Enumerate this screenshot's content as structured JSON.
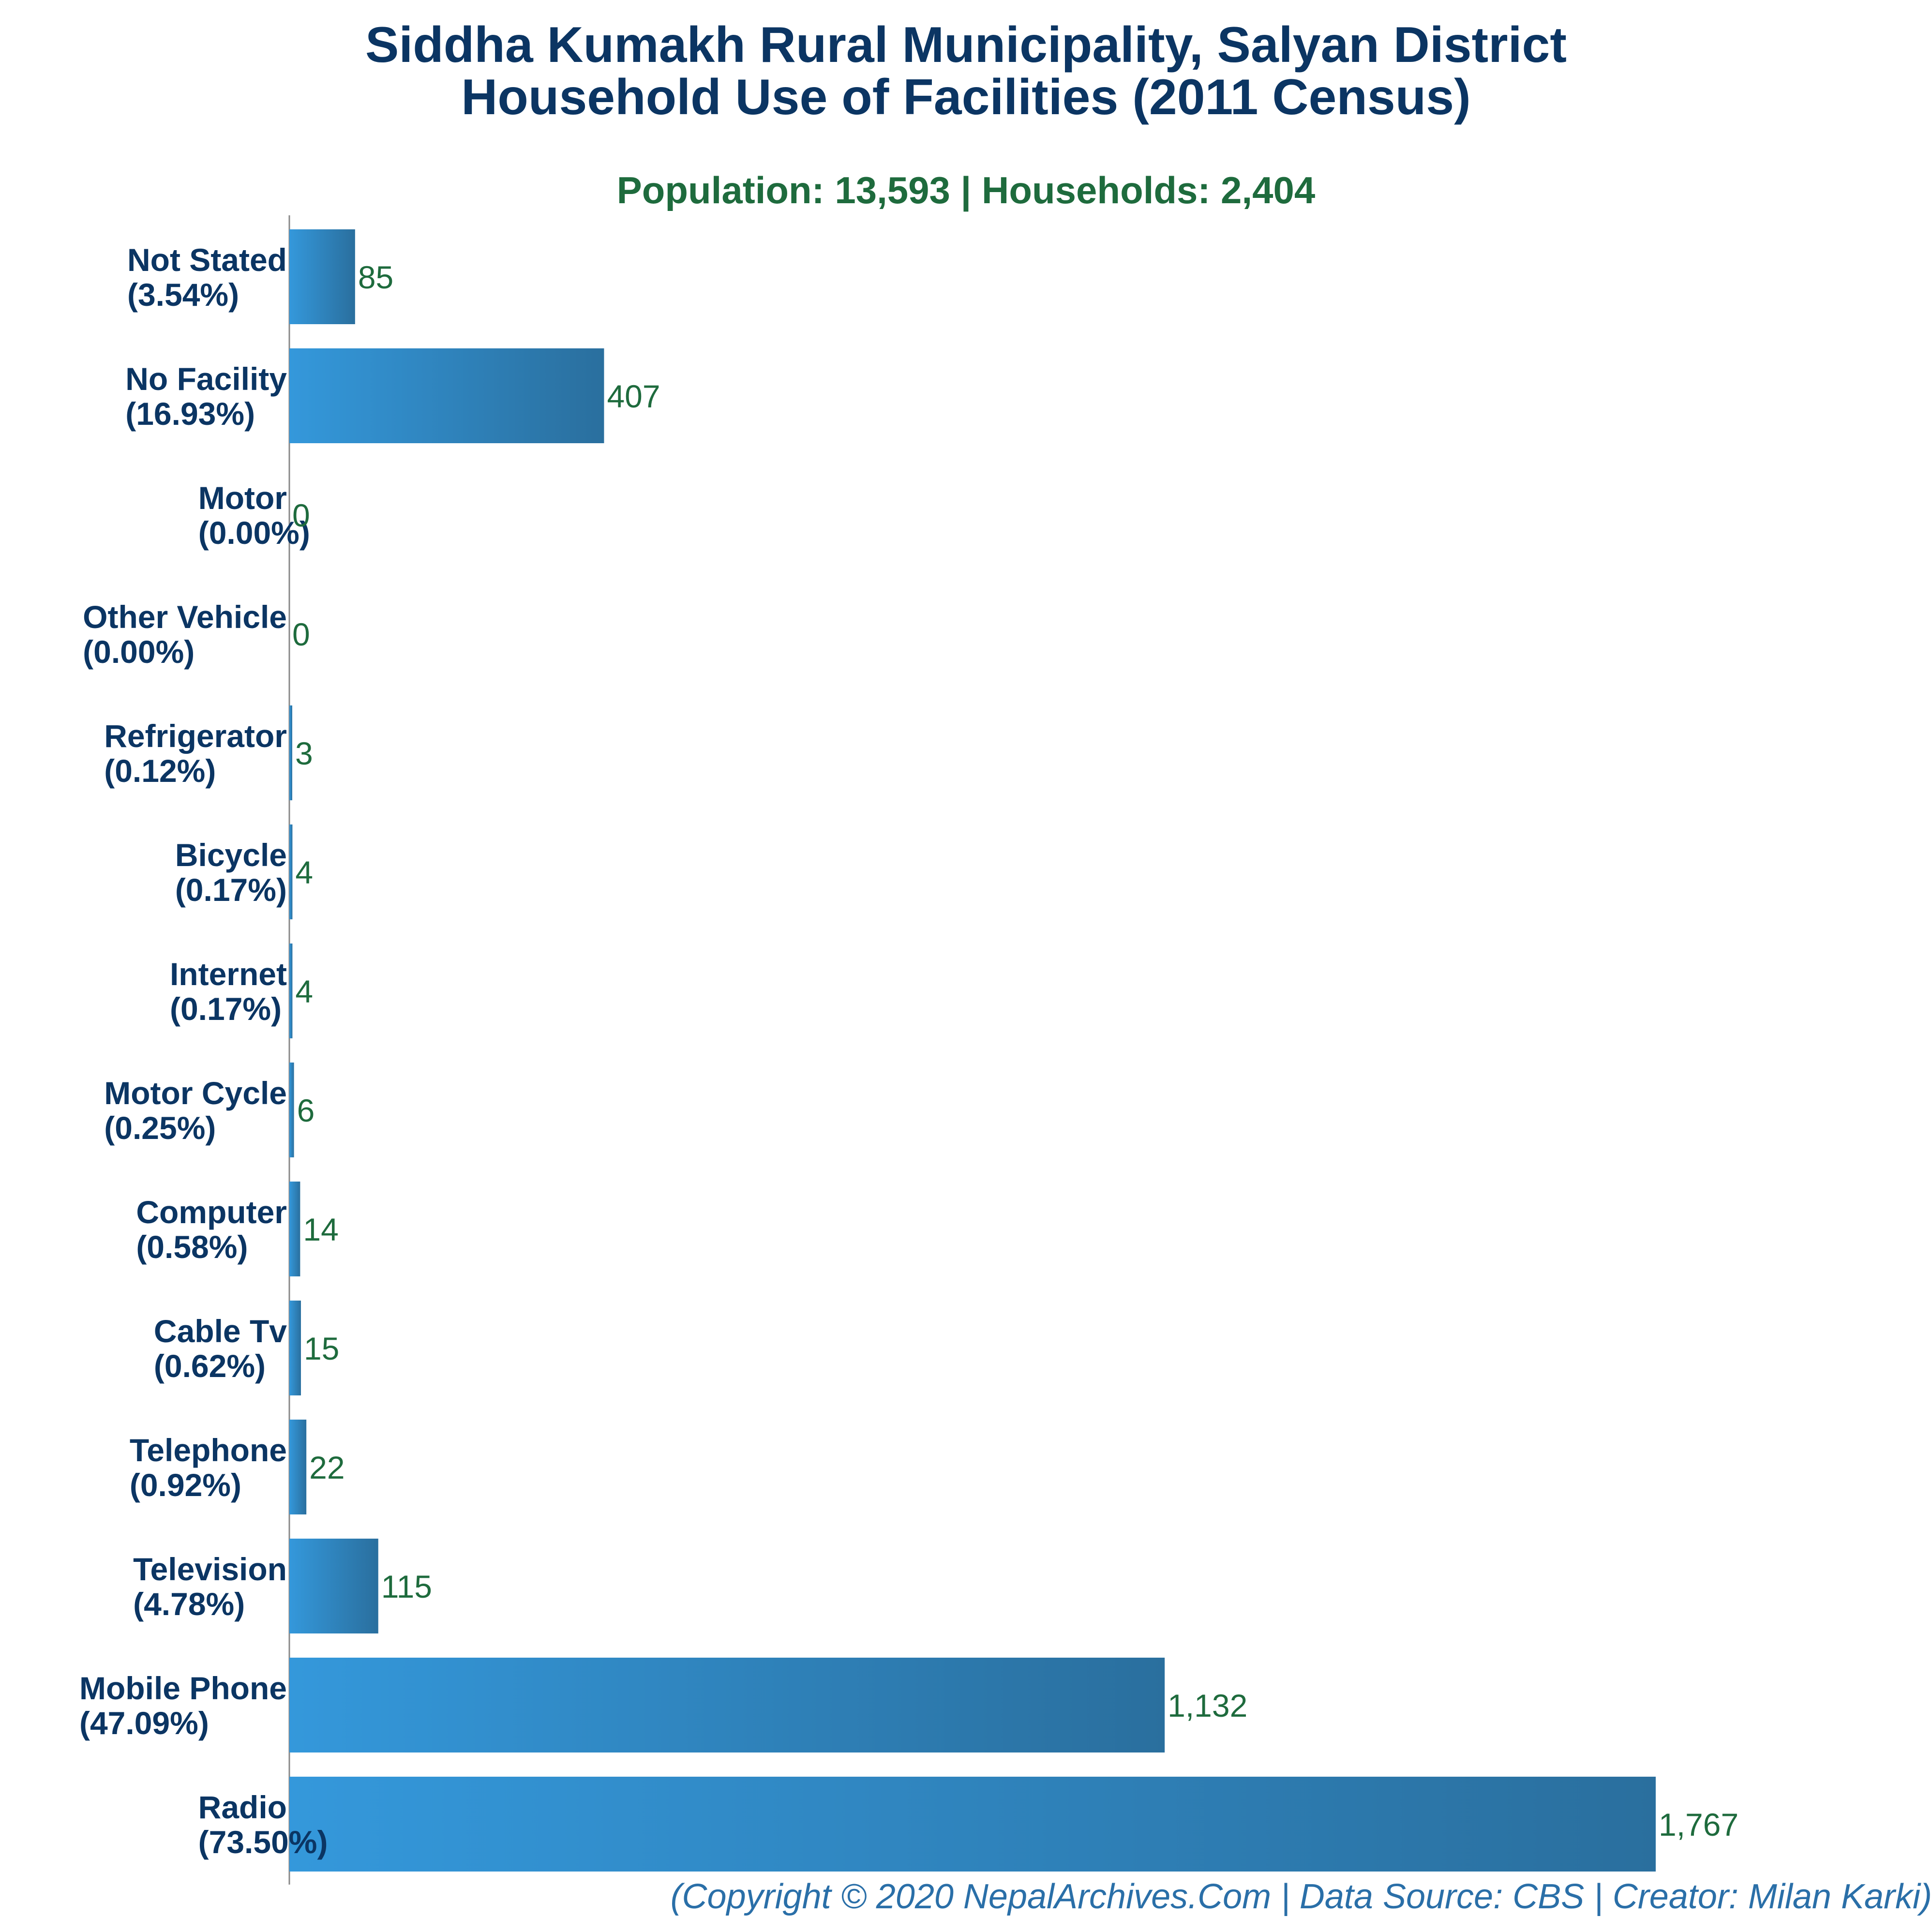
{
  "chart_data": {
    "type": "bar",
    "orientation": "horizontal",
    "title_line1": "Siddha Kumakh Rural Municipality, Salyan District",
    "title_line2": "Household Use of Facilities (2011 Census)",
    "subtitle": "Population: 13,593 | Households: 2,404",
    "categories": [
      "Not Stated",
      "No Facility",
      "Motor",
      "Other Vehicle",
      "Refrigerator",
      "Bicycle",
      "Internet",
      "Motor Cycle",
      "Computer",
      "Cable Tv",
      "Telephone",
      "Television",
      "Mobile Phone",
      "Radio"
    ],
    "percent_labels": [
      "(3.54%)",
      "(16.93%)",
      "(0.00%)",
      "(0.00%)",
      "(0.12%)",
      "(0.17%)",
      "(0.17%)",
      "(0.25%)",
      "(0.58%)",
      "(0.62%)",
      "(0.92%)",
      "(4.78%)",
      "(47.09%)",
      "(73.50%)"
    ],
    "values": [
      85,
      407,
      0,
      0,
      3,
      4,
      4,
      6,
      14,
      15,
      22,
      115,
      1132,
      1767
    ],
    "value_labels": [
      "85",
      "407",
      "0",
      "0",
      "3",
      "4",
      "4",
      "6",
      "14",
      "15",
      "22",
      "115",
      "1,132",
      "1,767"
    ],
    "xlim": [
      0,
      1767
    ],
    "grid": false,
    "legend": "none",
    "colors": {
      "bar_start": "#3498db",
      "bar_end": "#2a6f9e",
      "title": "#0b3563",
      "subtitle": "#1e6b3d",
      "value_label": "#1e6b3d",
      "axis": "#888888",
      "footer": "#2a6fa8"
    }
  },
  "footer": "(Copyright © 2020 NepalArchives.Com | Data Source: CBS | Creator: Milan Karki)"
}
